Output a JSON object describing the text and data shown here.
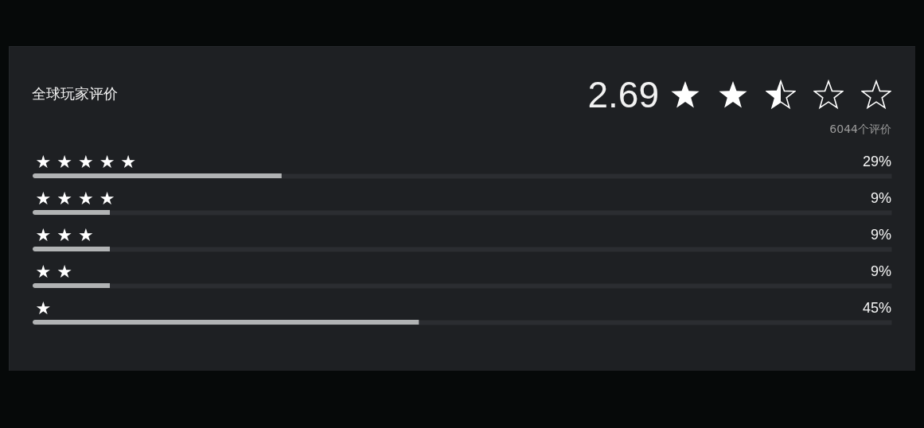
{
  "chart_data": {
    "type": "bar",
    "orientation": "horizontal",
    "title": "全球玩家评价",
    "annotations": [
      "2.69",
      "6044个评价"
    ],
    "categories": [
      "★ ★ ★ ★ ★",
      "★ ★ ★ ★",
      "★ ★ ★",
      "★ ★",
      "★"
    ],
    "values": [
      29,
      9,
      9,
      9,
      45
    ],
    "color": "#b1b3b4",
    "value_labels": [
      "29%",
      "9%",
      "9%",
      "9%",
      "45%"
    ],
    "xlim": [
      0,
      100
    ],
    "tick_labels": "y",
    "grid": "y"
  }
}
